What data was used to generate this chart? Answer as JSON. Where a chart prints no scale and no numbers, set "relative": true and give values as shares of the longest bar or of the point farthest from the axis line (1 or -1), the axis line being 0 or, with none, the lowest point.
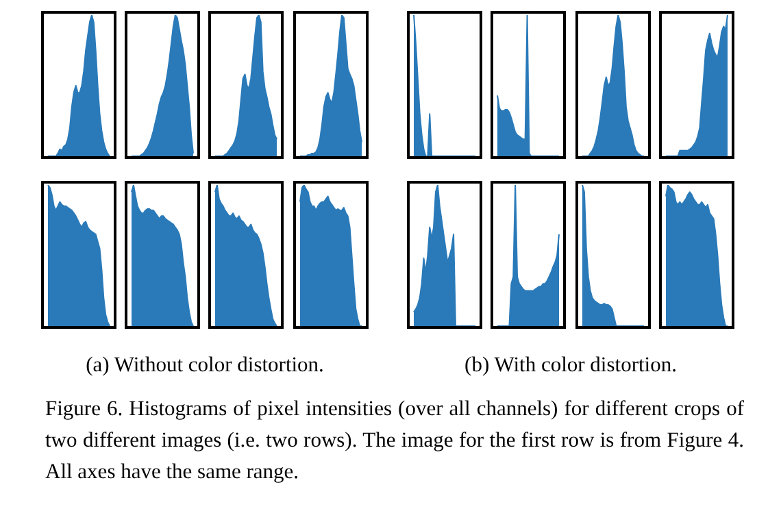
{
  "chart_data": [
    {
      "type": "area",
      "relative": true,
      "color": "#2a7ab9",
      "annotations": [
        "(a) Without color distortion.",
        "Figure 6. Histograms of pixel intensities (over all channels) for different crops of two different images (i.e. two rows). The image for the first row is from Figure 4. All axes have the same range."
      ],
      "categories": [
        null,
        null,
        null,
        null,
        null,
        null,
        null,
        null,
        null,
        null,
        null,
        null,
        null,
        null,
        null,
        null,
        null,
        null,
        null,
        null,
        null,
        null,
        null,
        null,
        null,
        null,
        null,
        null,
        null,
        null,
        null,
        null
      ],
      "values": [
        0,
        0,
        0,
        0,
        0,
        0.02,
        0.05,
        0.04,
        0.07,
        0.08,
        0.12,
        0.2,
        0.35,
        0.45,
        0.5,
        0.45,
        0.45,
        0.5,
        0.6,
        0.75,
        0.85,
        0.95,
        1,
        0.95,
        0.75,
        0.5,
        0.3,
        0.18,
        0.1,
        0.05,
        0.02,
        0
      ]
    },
    {
      "type": "area",
      "relative": true,
      "color": "#2a7ab9",
      "categories": [
        null,
        null,
        null,
        null,
        null,
        null,
        null,
        null,
        null,
        null,
        null,
        null,
        null,
        null,
        null,
        null,
        null,
        null,
        null,
        null,
        null,
        null,
        null,
        null,
        null,
        null,
        null,
        null,
        null,
        null,
        null,
        null
      ],
      "values": [
        0,
        0,
        0,
        0,
        0,
        0.01,
        0.02,
        0.04,
        0.06,
        0.09,
        0.13,
        0.18,
        0.24,
        0.3,
        0.37,
        0.42,
        0.45,
        0.5,
        0.58,
        0.68,
        0.8,
        0.92,
        1,
        0.98,
        0.9,
        0.82,
        0.75,
        0.65,
        0.5,
        0.35,
        0.15,
        0.02
      ]
    },
    {
      "type": "area",
      "relative": true,
      "color": "#2a7ab9",
      "categories": [
        null,
        null,
        null,
        null,
        null,
        null,
        null,
        null,
        null,
        null,
        null,
        null,
        null,
        null,
        null,
        null,
        null,
        null,
        null,
        null,
        null,
        null,
        null,
        null,
        null,
        null,
        null,
        null,
        null,
        null,
        null,
        null
      ],
      "values": [
        0,
        0,
        0,
        0,
        0,
        0.01,
        0.02,
        0.04,
        0.06,
        0.08,
        0.11,
        0.16,
        0.25,
        0.4,
        0.55,
        0.58,
        0.5,
        0.48,
        0.55,
        0.7,
        0.85,
        0.98,
        1,
        0.95,
        0.6,
        0.48,
        0.42,
        0.35,
        0.3,
        0.22,
        0.15,
        0.12
      ]
    },
    {
      "type": "area",
      "relative": true,
      "color": "#2a7ab9",
      "categories": [
        null,
        null,
        null,
        null,
        null,
        null,
        null,
        null,
        null,
        null,
        null,
        null,
        null,
        null,
        null,
        null,
        null,
        null,
        null,
        null,
        null,
        null,
        null,
        null,
        null,
        null,
        null,
        null,
        null,
        null,
        null,
        null
      ],
      "values": [
        0,
        0,
        0,
        0,
        0.01,
        0.01,
        0.02,
        0.02,
        0.03,
        0.06,
        0.12,
        0.22,
        0.35,
        0.42,
        0.45,
        0.4,
        0.38,
        0.45,
        0.58,
        0.72,
        0.88,
        1,
        0.98,
        0.8,
        0.62,
        0.58,
        0.55,
        0.5,
        0.4,
        0.3,
        0.18,
        0.1
      ]
    },
    {
      "type": "area",
      "relative": true,
      "color": "#2a7ab9",
      "annotations": [
        "(b) With color distortion."
      ],
      "categories": [
        null,
        null,
        null,
        null,
        null,
        null,
        null,
        null,
        null,
        null,
        null,
        null,
        null,
        null,
        null,
        null,
        null,
        null,
        null,
        null,
        null,
        null,
        null,
        null,
        null,
        null,
        null,
        null,
        null,
        null,
        null,
        null
      ],
      "values": [
        1,
        0.8,
        0.55,
        0.3,
        0.15,
        0.05,
        0,
        0,
        0.3,
        0,
        0,
        0,
        0,
        0,
        0,
        0,
        0,
        0,
        0,
        0,
        0,
        0,
        0,
        0,
        0,
        0,
        0,
        0,
        0,
        0,
        0,
        0
      ]
    },
    {
      "type": "area",
      "relative": true,
      "color": "#2a7ab9",
      "categories": [
        null,
        null,
        null,
        null,
        null,
        null,
        null,
        null,
        null,
        null,
        null,
        null,
        null,
        null,
        null,
        null,
        null,
        null,
        null,
        null,
        null,
        null,
        null,
        null,
        null,
        null,
        null,
        null,
        null,
        null,
        null,
        null
      ],
      "values": [
        0.43,
        0.34,
        0.32,
        0.32,
        0.33,
        0.33,
        0.31,
        0.27,
        0.22,
        0.17,
        0.15,
        0.14,
        0.13,
        0.12,
        0.12,
        1,
        0.02,
        0,
        0,
        0,
        0,
        0,
        0,
        0,
        0,
        0,
        0,
        0,
        0,
        0,
        0,
        0
      ]
    },
    {
      "type": "area",
      "relative": true,
      "color": "#2a7ab9",
      "categories": [
        null,
        null,
        null,
        null,
        null,
        null,
        null,
        null,
        null,
        null,
        null,
        null,
        null,
        null,
        null,
        null,
        null,
        null,
        null,
        null,
        null,
        null,
        null,
        null,
        null,
        null,
        null,
        null,
        null,
        null,
        null,
        null
      ],
      "values": [
        0,
        0,
        0,
        0,
        0.02,
        0.04,
        0.07,
        0.12,
        0.18,
        0.27,
        0.38,
        0.5,
        0.56,
        0.5,
        0.52,
        0.62,
        0.78,
        0.92,
        1,
        0.95,
        0.8,
        0.6,
        0.35,
        0.25,
        0.2,
        0.15,
        0.08,
        0.04,
        0.02,
        0.01,
        0,
        0
      ]
    },
    {
      "type": "area",
      "relative": true,
      "color": "#2a7ab9",
      "categories": [
        null,
        null,
        null,
        null,
        null,
        null,
        null,
        null,
        null,
        null,
        null,
        null,
        null,
        null,
        null,
        null,
        null,
        null,
        null,
        null,
        null,
        null,
        null,
        null,
        null,
        null,
        null,
        null,
        null,
        null,
        null,
        null
      ],
      "values": [
        0,
        0,
        0,
        0,
        0,
        0,
        0,
        0.04,
        0.04,
        0.04,
        0.04,
        0.04,
        0.05,
        0.06,
        0.08,
        0.1,
        0.14,
        0.2,
        0.38,
        0.55,
        0.75,
        0.82,
        0.87,
        0.8,
        0.75,
        0.72,
        0.7,
        0.78,
        0.88,
        0.92,
        0.9,
        1
      ]
    },
    {
      "type": "area",
      "relative": true,
      "color": "#2a7ab9",
      "categories": [
        null,
        null,
        null,
        null,
        null,
        null,
        null,
        null,
        null,
        null,
        null,
        null,
        null,
        null,
        null,
        null,
        null,
        null,
        null,
        null,
        null,
        null,
        null,
        null,
        null,
        null,
        null,
        null,
        null,
        null,
        null,
        null
      ],
      "values": [
        1,
        0.98,
        0.93,
        0.85,
        0.82,
        0.85,
        0.88,
        0.86,
        0.85,
        0.85,
        0.84,
        0.83,
        0.82,
        0.8,
        0.78,
        0.75,
        0.72,
        0.7,
        0.73,
        0.74,
        0.7,
        0.68,
        0.67,
        0.66,
        0.65,
        0.6,
        0.55,
        0.4,
        0.2,
        0.08,
        0.03,
        0
      ]
    },
    {
      "type": "area",
      "relative": true,
      "color": "#2a7ab9",
      "categories": [
        null,
        null,
        null,
        null,
        null,
        null,
        null,
        null,
        null,
        null,
        null,
        null,
        null,
        null,
        null,
        null,
        null,
        null,
        null,
        null,
        null,
        null,
        null,
        null,
        null,
        null,
        null,
        null,
        null,
        null,
        null,
        null
      ],
      "values": [
        0.95,
        1,
        0.92,
        0.85,
        0.82,
        0.8,
        0.8,
        0.82,
        0.83,
        0.83,
        0.82,
        0.82,
        0.8,
        0.78,
        0.76,
        0.78,
        0.78,
        0.76,
        0.75,
        0.74,
        0.73,
        0.72,
        0.7,
        0.68,
        0.65,
        0.58,
        0.45,
        0.35,
        0.2,
        0.1,
        0.03,
        0
      ]
    },
    {
      "type": "area",
      "relative": true,
      "color": "#2a7ab9",
      "categories": [
        null,
        null,
        null,
        null,
        null,
        null,
        null,
        null,
        null,
        null,
        null,
        null,
        null,
        null,
        null,
        null,
        null,
        null,
        null,
        null,
        null,
        null,
        null,
        null,
        null,
        null,
        null,
        null,
        null,
        null,
        null,
        null
      ],
      "values": [
        0.95,
        1,
        0.9,
        0.87,
        0.85,
        0.82,
        0.8,
        0.78,
        0.78,
        0.8,
        0.77,
        0.76,
        0.78,
        0.75,
        0.74,
        0.72,
        0.7,
        0.7,
        0.72,
        0.68,
        0.66,
        0.65,
        0.62,
        0.58,
        0.52,
        0.42,
        0.3,
        0.2,
        0.12,
        0.05,
        0.02,
        0
      ]
    },
    {
      "type": "area",
      "relative": true,
      "color": "#2a7ab9",
      "categories": [
        null,
        null,
        null,
        null,
        null,
        null,
        null,
        null,
        null,
        null,
        null,
        null,
        null,
        null,
        null,
        null,
        null,
        null,
        null,
        null,
        null,
        null,
        null,
        null,
        null,
        null,
        null,
        null,
        null,
        null,
        null,
        null
      ],
      "values": [
        0.88,
        0.98,
        1,
        0.97,
        0.95,
        0.88,
        0.85,
        0.85,
        0.82,
        0.85,
        0.87,
        0.88,
        0.88,
        0.9,
        0.92,
        0.88,
        0.86,
        0.84,
        0.82,
        0.83,
        0.82,
        0.82,
        0.84,
        0.8,
        0.78,
        0.7,
        0.5,
        0.3,
        0.12,
        0.05,
        0,
        0
      ]
    },
    {
      "type": "area",
      "relative": true,
      "color": "#2a7ab9",
      "categories": [
        null,
        null,
        null,
        null,
        null,
        null,
        null,
        null,
        null,
        null,
        null,
        null,
        null,
        null,
        null,
        null,
        null,
        null,
        null,
        null,
        null,
        null,
        null,
        null,
        null,
        null,
        null,
        null,
        null,
        null,
        null,
        null
      ],
      "values": [
        0.1,
        0.12,
        0.15,
        0.2,
        0.3,
        0.48,
        0.38,
        0.5,
        0.7,
        0.62,
        0.7,
        0.95,
        1,
        0.85,
        0.75,
        0.65,
        0.55,
        0.45,
        0.5,
        0.55,
        0.65,
        0,
        0,
        0,
        0,
        0,
        0,
        0,
        0,
        0,
        0,
        0
      ]
    },
    {
      "type": "area",
      "relative": true,
      "color": "#2a7ab9",
      "categories": [
        null,
        null,
        null,
        null,
        null,
        null,
        null,
        null,
        null,
        null,
        null,
        null,
        null,
        null,
        null,
        null,
        null,
        null,
        null,
        null,
        null,
        null,
        null,
        null,
        null,
        null,
        null,
        null,
        null,
        null,
        null,
        null
      ],
      "values": [
        0,
        0,
        0,
        0,
        0,
        0,
        0,
        0.3,
        0.35,
        1,
        0.35,
        0.3,
        0.28,
        0.26,
        0.25,
        0.25,
        0.25,
        0.25,
        0.25,
        0.26,
        0.27,
        0.28,
        0.28,
        0.3,
        0.3,
        0.32,
        0.35,
        0.38,
        0.42,
        0.45,
        0.5,
        0.65
      ]
    },
    {
      "type": "area",
      "relative": true,
      "color": "#2a7ab9",
      "categories": [
        null,
        null,
        null,
        null,
        null,
        null,
        null,
        null,
        null,
        null,
        null,
        null,
        null,
        null,
        null,
        null,
        null,
        null,
        null,
        null,
        null,
        null,
        null,
        null,
        null,
        null,
        null,
        null,
        null,
        null,
        null,
        null
      ],
      "values": [
        1,
        0.95,
        0.55,
        0.35,
        0.25,
        0.2,
        0.18,
        0.17,
        0.16,
        0.15,
        0.15,
        0.16,
        0.15,
        0.15,
        0.14,
        0.12,
        0.06,
        0,
        0,
        0,
        0,
        0,
        0,
        0,
        0,
        0,
        0,
        0,
        0,
        0,
        0,
        0
      ]
    },
    {
      "type": "area",
      "relative": true,
      "color": "#2a7ab9",
      "categories": [
        null,
        null,
        null,
        null,
        null,
        null,
        null,
        null,
        null,
        null,
        null,
        null,
        null,
        null,
        null,
        null,
        null,
        null,
        null,
        null,
        null,
        null,
        null,
        null,
        null,
        null,
        null,
        null,
        null,
        null,
        null,
        null
      ],
      "values": [
        0.92,
        1,
        0.98,
        0.97,
        0.95,
        0.88,
        0.86,
        0.88,
        0.86,
        0.88,
        0.9,
        0.93,
        0.95,
        0.93,
        0.9,
        0.88,
        0.86,
        0.86,
        0.88,
        0.86,
        0.84,
        0.86,
        0.8,
        0.78,
        0.76,
        0.65,
        0.5,
        0.3,
        0.15,
        0.06,
        0,
        0
      ]
    }
  ]
}
